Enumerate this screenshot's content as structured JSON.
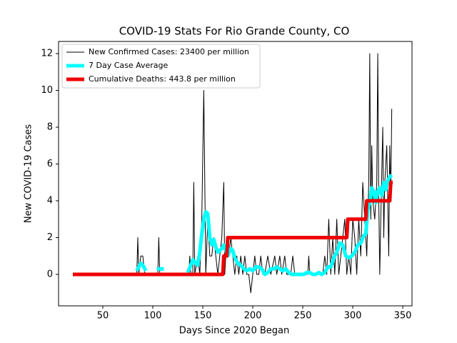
{
  "chart_data": {
    "type": "line",
    "title": "COVID-19 Stats For Rio Grande County, CO",
    "x_label": "Days Since 2020 Began",
    "y_label": "New COVID-19 Cases",
    "xlim": [
      5.75,
      359.25
    ],
    "ylim": [
      -1.71,
      12.66
    ],
    "xticks": [
      50,
      100,
      150,
      200,
      250,
      300,
      350
    ],
    "yticks": [
      0,
      2,
      4,
      6,
      8,
      10,
      12
    ],
    "grid": false,
    "legend": "upper left",
    "series": [
      {
        "name": "New Confirmed Cases: 23400 per million",
        "color": "#000000",
        "x": [
          84,
          85,
          86,
          88,
          90,
          92,
          105,
          106,
          107,
          110,
          136,
          137,
          138,
          140,
          141,
          142,
          145,
          147,
          149,
          151,
          153,
          155,
          157,
          159,
          161,
          163,
          165,
          167,
          169,
          171,
          172,
          174,
          176,
          178,
          180,
          182,
          184,
          186,
          188,
          190,
          192,
          194,
          196,
          198,
          200,
          202,
          204,
          206,
          208,
          210,
          212,
          215,
          218,
          222,
          224,
          227,
          229,
          232,
          234,
          238,
          240,
          242,
          255,
          256,
          257,
          270,
          272,
          274,
          276,
          278,
          280,
          282,
          284,
          286,
          288,
          290,
          292,
          294,
          296,
          298,
          300,
          302,
          304,
          306,
          308,
          310,
          312,
          314,
          316,
          317,
          318,
          319,
          320,
          322,
          324,
          325,
          326,
          327,
          328,
          330,
          331,
          332,
          334,
          336,
          337,
          338,
          339
        ],
        "values": [
          0,
          2,
          0,
          1,
          1,
          0,
          0,
          2,
          0,
          0,
          0,
          1,
          0,
          0,
          5,
          0,
          1,
          0,
          3,
          10,
          0,
          3,
          1,
          1,
          2,
          1,
          0,
          1,
          2,
          5,
          0,
          2,
          1,
          2,
          1,
          0,
          1,
          0,
          1,
          0,
          1,
          0,
          0,
          -1,
          0,
          1,
          0,
          0,
          1,
          0,
          0,
          1,
          0,
          1,
          0,
          1,
          0,
          1,
          0,
          0,
          1,
          0,
          0,
          1,
          0,
          0,
          1,
          0,
          3,
          0,
          2,
          0,
          3,
          0,
          1,
          2,
          3,
          0,
          1,
          0,
          3,
          2,
          0,
          3,
          1,
          5,
          3,
          1,
          5,
          12,
          3,
          7,
          4,
          3,
          5,
          12,
          4,
          0,
          3,
          8,
          2,
          5,
          7,
          1,
          7,
          4,
          9
        ]
      },
      {
        "name": "7 Day Case Average",
        "color": "#00ffff",
        "x": [
          84,
          86,
          88,
          90,
          93,
          95,
          104,
          107,
          111,
          113,
          135,
          138,
          140,
          143,
          145,
          147,
          149,
          151,
          153,
          155,
          157,
          159,
          161,
          163,
          165,
          167,
          169,
          171,
          173,
          175,
          178,
          180,
          182,
          185,
          188,
          191,
          194,
          197,
          200,
          203,
          206,
          209,
          212,
          215,
          218,
          221,
          224,
          227,
          230,
          233,
          236,
          239,
          242,
          245,
          248,
          251,
          254,
          257,
          260,
          263,
          266,
          269,
          272,
          275,
          278,
          281,
          284,
          287,
          290,
          293,
          296,
          299,
          302,
          305,
          308,
          311,
          313,
          315,
          317,
          319,
          321,
          323,
          325,
          327,
          329,
          331,
          333,
          335,
          337,
          339
        ],
        "values": [
          0.2,
          0.4,
          0.6,
          0.5,
          0.2,
          null,
          0.3,
          0.3,
          0.3,
          null,
          0.1,
          0.5,
          0.8,
          0.6,
          0.5,
          1.2,
          2.2,
          3.0,
          3.4,
          3.3,
          2.0,
          1.6,
          1.9,
          1.5,
          1.2,
          1.3,
          1.4,
          1.6,
          1.3,
          1.0,
          1.4,
          1.3,
          0.9,
          0.6,
          0.5,
          0.3,
          0.2,
          0.3,
          0.2,
          0.4,
          0.4,
          0.3,
          0.0,
          0.1,
          0.3,
          0.3,
          0.4,
          0.3,
          0.2,
          0.3,
          0.1,
          0.0,
          0.0,
          0.0,
          0.0,
          0.0,
          0.1,
          0.1,
          0.0,
          0.0,
          0.1,
          0.0,
          0.1,
          0.4,
          0.4,
          0.9,
          1.2,
          1.7,
          1.6,
          1.0,
          0.9,
          1.0,
          1.2,
          1.6,
          1.7,
          2.1,
          2.2,
          3.5,
          3.9,
          4.7,
          4.5,
          3.9,
          4.5,
          4.7,
          4.3,
          5.0,
          4.6,
          5.1,
          5.3,
          5.4
        ]
      },
      {
        "name": "Cumulative Deaths: 443.8 per million",
        "color": "#ee0000",
        "x": [
          20,
          170,
          171,
          174,
          175,
          294,
          295,
          313,
          314,
          337,
          338,
          340
        ],
        "values": [
          0,
          0,
          1,
          1,
          2,
          2,
          3,
          3,
          4,
          4,
          5,
          5
        ]
      }
    ]
  }
}
